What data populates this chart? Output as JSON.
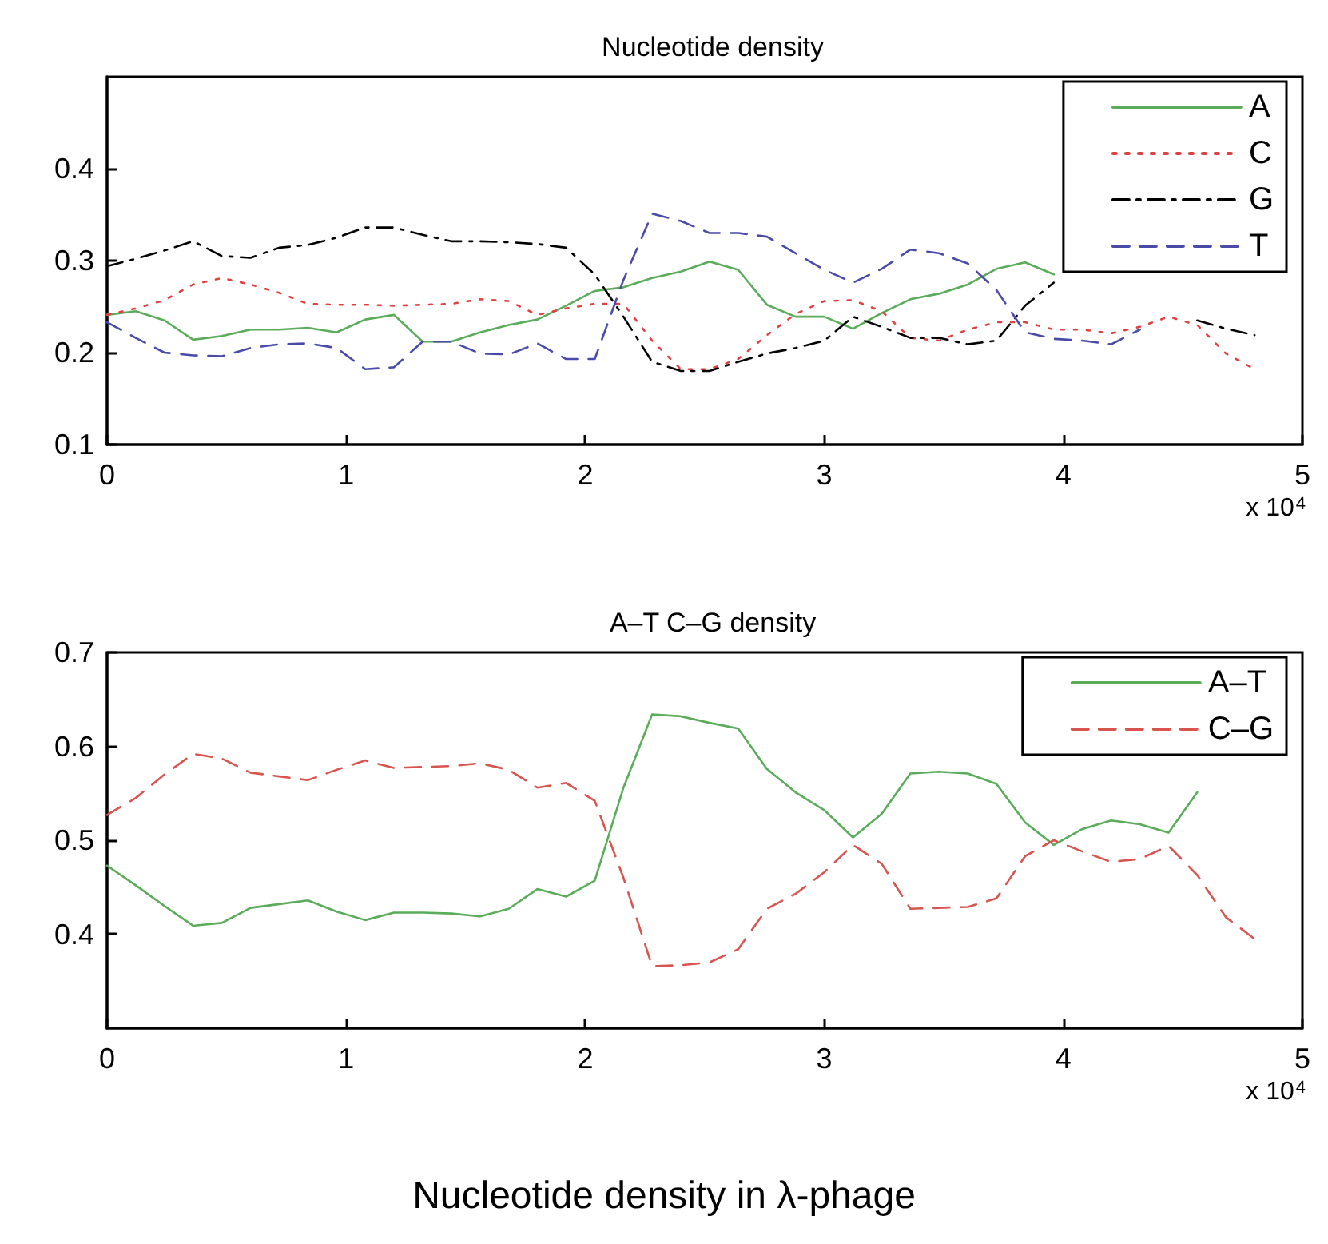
{
  "chart_data": [
    {
      "type": "line",
      "title": "Nucleotide density",
      "x": [
        0,
        0.12,
        0.24,
        0.36,
        0.48,
        0.6,
        0.72,
        0.84,
        0.96,
        1.08,
        1.2,
        1.32,
        1.44,
        1.56,
        1.68,
        1.8,
        1.92,
        2.04,
        2.16,
        2.28,
        2.4,
        2.52,
        2.64,
        2.76,
        2.88,
        3.0,
        3.12,
        3.24,
        3.36,
        3.48,
        3.6,
        3.72,
        3.84,
        3.96,
        4.08,
        4.2,
        4.32,
        4.44,
        4.56,
        4.68,
        4.8
      ],
      "xlim": [
        0,
        5
      ],
      "xticks": [
        0,
        1,
        2,
        3,
        4,
        5
      ],
      "ylim": [
        0.1,
        0.5
      ],
      "yticks": [
        0.1,
        0.2,
        0.3,
        0.4
      ],
      "legend": "top right",
      "marker": "none",
      "grid": false,
      "annotations": [
        "x 10$^{4}$"
      ],
      "series": [
        {
          "name": "A",
          "color": "#5aac5a",
          "line_style": "solid",
          "values": [
            0.241,
            0.245,
            0.235,
            0.214,
            0.218,
            0.225,
            0.225,
            0.227,
            0.222,
            0.236,
            0.241,
            0.212,
            0.212,
            0.222,
            0.23,
            0.236,
            0.251,
            0.267,
            0.271,
            0.281,
            0.288,
            0.299,
            0.29,
            0.252,
            0.239,
            0.239,
            0.226,
            0.243,
            0.258,
            0.264,
            0.274,
            0.291,
            0.298,
            0.285,
            null,
            null,
            null,
            null,
            null,
            null,
            null
          ]
        },
        {
          "name": "C",
          "color": "#e04040",
          "line_style": "dotted",
          "values": [
            0.241,
            0.248,
            0.257,
            0.274,
            0.281,
            0.274,
            0.265,
            0.253,
            0.252,
            0.252,
            0.251,
            0.252,
            0.253,
            0.258,
            0.256,
            0.241,
            0.248,
            0.253,
            0.253,
            0.213,
            0.182,
            0.182,
            0.193,
            0.219,
            0.242,
            0.256,
            0.257,
            0.245,
            0.216,
            0.213,
            0.225,
            0.233,
            0.233,
            0.225,
            0.225,
            0.221,
            0.228,
            0.239,
            0.23,
            0.199,
            0.182
          ]
        },
        {
          "name": "G",
          "color": "#000000",
          "line_style": "dashdot",
          "values": [
            0.294,
            0.302,
            0.311,
            0.321,
            0.305,
            0.303,
            0.314,
            0.317,
            0.325,
            0.336,
            0.336,
            0.328,
            0.321,
            0.321,
            0.32,
            0.318,
            0.314,
            0.285,
            0.239,
            0.19,
            0.18,
            0.18,
            0.19,
            0.199,
            0.205,
            0.213,
            0.239,
            0.228,
            0.216,
            0.216,
            0.209,
            0.213,
            0.251,
            0.276,
            null,
            null,
            null,
            null,
            0.235,
            0.226,
            0.219
          ]
        },
        {
          "name": "T",
          "color": "#4a4aaa",
          "line_style": "dashed",
          "values": [
            0.233,
            0.216,
            0.2,
            0.197,
            0.196,
            0.205,
            0.209,
            0.21,
            0.205,
            0.182,
            0.184,
            0.212,
            0.212,
            0.199,
            0.198,
            0.21,
            0.193,
            0.193,
            0.279,
            0.351,
            0.343,
            0.33,
            0.33,
            0.326,
            0.308,
            0.29,
            0.276,
            0.291,
            0.312,
            0.308,
            0.297,
            0.268,
            0.222,
            0.215,
            0.213,
            0.209,
            0.225,
            null,
            null,
            null,
            null
          ]
        }
      ]
    },
    {
      "type": "line",
      "title": "A–T C–G density",
      "x": [
        0,
        0.12,
        0.24,
        0.36,
        0.48,
        0.6,
        0.72,
        0.84,
        0.96,
        1.08,
        1.2,
        1.32,
        1.44,
        1.56,
        1.68,
        1.8,
        1.92,
        2.04,
        2.16,
        2.28,
        2.4,
        2.52,
        2.64,
        2.76,
        2.88,
        3.0,
        3.12,
        3.24,
        3.36,
        3.48,
        3.6,
        3.72,
        3.84,
        3.96,
        4.08,
        4.2,
        4.32,
        4.44,
        4.56,
        4.68,
        4.8
      ],
      "xlim": [
        0,
        5
      ],
      "xticks": [
        0,
        1,
        2,
        3,
        4,
        5
      ],
      "ylim": [
        0.3,
        0.7
      ],
      "yticks": [
        0.4,
        0.5,
        0.6,
        0.7
      ],
      "legend": "top right",
      "marker": "none",
      "grid": false,
      "annotations": [
        "x 10$^{4}$",
        "Nucleotide density in λ-phage"
      ],
      "series": [
        {
          "name": "A–T",
          "color": "#5aac5a",
          "line_style": "solid",
          "values": [
            0.473,
            0.452,
            0.43,
            0.409,
            0.412,
            0.428,
            0.432,
            0.436,
            0.424,
            0.415,
            0.423,
            0.423,
            0.422,
            0.419,
            0.427,
            0.448,
            0.44,
            0.457,
            0.556,
            0.634,
            0.632,
            0.625,
            0.619,
            0.576,
            0.551,
            0.532,
            0.503,
            0.528,
            0.571,
            0.573,
            0.571,
            0.56,
            0.519,
            0.495,
            0.512,
            0.521,
            0.517,
            0.508,
            0.551,
            null,
            null
          ]
        },
        {
          "name": "C–G",
          "color": "#d9534f",
          "line_style": "dashed",
          "values": [
            0.527,
            0.545,
            0.57,
            0.592,
            0.587,
            0.572,
            0.568,
            0.564,
            0.575,
            0.585,
            0.577,
            0.578,
            0.579,
            0.582,
            0.575,
            0.556,
            0.561,
            0.542,
            0.46,
            0.366,
            0.367,
            0.37,
            0.384,
            0.427,
            0.443,
            0.466,
            0.495,
            0.475,
            0.427,
            0.428,
            0.429,
            0.438,
            0.483,
            0.5,
            0.488,
            0.477,
            0.48,
            0.494,
            0.463,
            0.418,
            0.395
          ]
        }
      ]
    }
  ]
}
